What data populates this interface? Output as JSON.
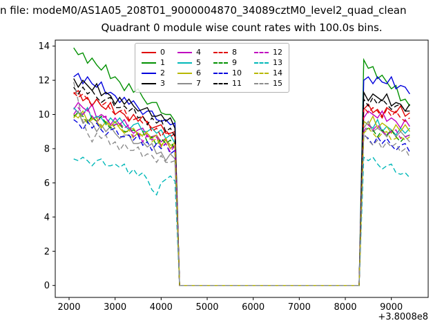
{
  "figure": {
    "title_line1": "n file: modeM0/AS1A05_208T01_9000004870_34089cztM0_level2_quad_clean",
    "title_line2": "Quadrant 0 module wise count rates with 100.0s bins."
  },
  "chart_data": {
    "type": "line",
    "title": "Quadrant 0 module wise count rates with 100.0s bins.",
    "xlabel": "",
    "ylabel": "",
    "x_offset_label": "+3.8008e8",
    "xlim": [
      1700,
      9800
    ],
    "ylim": [
      -0.7,
      14.35
    ],
    "xticks": [
      2000,
      3000,
      4000,
      5000,
      6000,
      7000,
      8000,
      9000
    ],
    "yticks": [
      0,
      2,
      4,
      6,
      8,
      10,
      12,
      14
    ],
    "grid": false,
    "legend_position": "upper center",
    "x_phase1": [
      2100,
      2200,
      2300,
      2400,
      2500,
      2600,
      2700,
      2800,
      2900,
      3000,
      3100,
      3200,
      3300,
      3400,
      3500,
      3600,
      3700,
      3800,
      3900,
      4000,
      4100,
      4200,
      4300
    ],
    "gap": {
      "x_drop": 4400,
      "x_rise": 8300,
      "value": 0
    },
    "x_phase2": [
      8400,
      8500,
      8600,
      8700,
      8800,
      8900,
      9000,
      9100,
      9200,
      9300,
      9400
    ],
    "series": [
      {
        "label": "0",
        "color": "#e00000",
        "dashed": false,
        "phase1": [
          11.2,
          11.4,
          10.8,
          11.0,
          10.5,
          10.9,
          10.5,
          10.3,
          10.7,
          10.0,
          10.2,
          10.0,
          9.6,
          10.0,
          9.6,
          9.9,
          9.5,
          9.2,
          9.3,
          9.4,
          8.9,
          8.9,
          9.0
        ],
        "phase2": [
          10.3,
          10.6,
          10.1,
          10.3,
          9.9,
          10.4,
          10.2,
          10.1,
          10.5,
          9.9,
          10.1
        ]
      },
      {
        "label": "1",
        "color": "#009000",
        "dashed": false,
        "phase1": [
          13.9,
          13.5,
          13.6,
          13.0,
          13.3,
          12.9,
          12.6,
          12.9,
          12.1,
          12.2,
          11.9,
          11.4,
          11.8,
          11.3,
          11.5,
          11.0,
          10.6,
          10.7,
          10.7,
          10.1,
          10.0,
          10.0,
          9.6
        ],
        "phase2": [
          13.2,
          12.7,
          12.8,
          12.1,
          12.3,
          11.9,
          11.5,
          11.7,
          10.8,
          10.9,
          10.5
        ]
      },
      {
        "label": "2",
        "color": "#0000dd",
        "dashed": false,
        "phase1": [
          12.2,
          12.4,
          11.8,
          12.2,
          11.8,
          11.6,
          11.9,
          11.2,
          11.3,
          11.1,
          10.7,
          11.0,
          10.6,
          10.8,
          10.4,
          10.0,
          10.2,
          10.2,
          9.7,
          9.6,
          9.7,
          9.4,
          9.5
        ],
        "phase2": [
          12.0,
          12.2,
          11.8,
          12.2,
          11.9,
          11.8,
          12.2,
          11.5,
          11.7,
          11.6,
          11.2
        ]
      },
      {
        "label": "3",
        "color": "#000000",
        "dashed": false,
        "phase1": [
          12.1,
          11.6,
          12.0,
          11.7,
          11.4,
          11.8,
          11.1,
          11.3,
          11.1,
          10.6,
          11.0,
          10.6,
          10.9,
          10.5,
          10.2,
          10.3,
          10.4,
          9.9,
          9.9,
          10.0,
          9.6,
          9.8,
          9.2
        ],
        "phase2": [
          11.3,
          10.8,
          11.2,
          11.0,
          10.8,
          11.2,
          10.5,
          10.7,
          10.6,
          10.2,
          10.6
        ]
      },
      {
        "label": "4",
        "color": "#c000c0",
        "dashed": false,
        "phase1": [
          10.3,
          10.7,
          10.4,
          10.2,
          10.6,
          9.8,
          10.0,
          9.8,
          9.4,
          9.8,
          9.4,
          9.7,
          9.2,
          8.9,
          9.1,
          9.2,
          8.7,
          8.7,
          8.8,
          8.4,
          8.6,
          8.0,
          8.2
        ],
        "phase2": [
          9.8,
          10.2,
          10.0,
          9.8,
          10.2,
          9.6,
          9.8,
          9.6,
          9.2,
          9.7,
          9.3
        ]
      },
      {
        "label": "5",
        "color": "#00b8b8",
        "dashed": false,
        "phase1": [
          10.4,
          10.1,
          10.0,
          10.4,
          9.7,
          9.9,
          9.8,
          9.4,
          9.8,
          9.5,
          9.8,
          9.4,
          9.1,
          9.4,
          9.5,
          9.0,
          9.0,
          9.2,
          8.9,
          9.1,
          8.6,
          8.8,
          8.3
        ],
        "phase2": [
          9.6,
          9.4,
          9.2,
          9.7,
          9.0,
          9.3,
          9.1,
          8.8,
          9.2,
          8.9,
          9.2
        ]
      },
      {
        "label": "6",
        "color": "#b8b800",
        "dashed": false,
        "phase1": [
          10.0,
          9.8,
          10.2,
          9.6,
          9.8,
          9.6,
          9.2,
          9.6,
          9.3,
          9.6,
          9.2,
          8.9,
          9.1,
          9.2,
          8.8,
          8.8,
          8.9,
          8.6,
          8.8,
          8.2,
          8.5,
          8.0,
          8.4
        ],
        "phase2": [
          9.6,
          9.4,
          9.9,
          9.2,
          9.5,
          9.3,
          8.9,
          9.4,
          9.0,
          9.4,
          9.0
        ]
      },
      {
        "label": "7",
        "color": "#8c8c8c",
        "dashed": false,
        "phase1": [
          9.8,
          10.2,
          9.5,
          9.7,
          9.5,
          9.0,
          9.4,
          9.0,
          9.3,
          8.9,
          8.6,
          8.8,
          8.8,
          8.3,
          8.3,
          8.4,
          8.1,
          8.3,
          7.7,
          7.8,
          7.3,
          7.7,
          7.4
        ],
        "phase2": [
          9.2,
          9.6,
          9.0,
          9.2,
          9.0,
          8.7,
          9.1,
          8.7,
          9.0,
          8.7,
          8.4
        ]
      },
      {
        "label": "8",
        "color": "#e00000",
        "dashed": true,
        "phase1": [
          11.3,
          11.0,
          11.2,
          10.9,
          10.5,
          10.9,
          10.5,
          10.7,
          10.3,
          10.0,
          10.2,
          10.3,
          9.7,
          9.7,
          9.8,
          9.5,
          9.6,
          9.0,
          9.2,
          8.7,
          9.1,
          8.7,
          8.9
        ],
        "phase2": [
          10.4,
          10.1,
          10.4,
          10.2,
          9.8,
          10.3,
          9.9,
          10.2,
          9.8,
          9.6,
          9.8
        ]
      },
      {
        "label": "9",
        "color": "#009000",
        "dashed": true,
        "phase1": [
          9.9,
          10.1,
          9.9,
          9.5,
          9.9,
          9.6,
          9.9,
          9.5,
          9.2,
          9.4,
          9.5,
          9.0,
          9.0,
          9.1,
          8.8,
          9.0,
          8.4,
          8.7,
          8.2,
          8.6,
          8.3,
          8.5,
          7.9
        ],
        "phase2": [
          9.0,
          9.2,
          9.1,
          8.7,
          9.1,
          8.8,
          9.1,
          8.7,
          8.4,
          8.7,
          8.8
        ]
      },
      {
        "label": "10",
        "color": "#0000dd",
        "dashed": true,
        "phase1": [
          9.7,
          9.5,
          9.1,
          9.6,
          9.2,
          9.5,
          9.1,
          8.8,
          9.1,
          9.2,
          8.7,
          8.7,
          8.8,
          8.5,
          8.8,
          8.2,
          8.4,
          7.9,
          8.3,
          8.0,
          8.3,
          7.7,
          7.9
        ],
        "phase2": [
          8.8,
          8.6,
          8.2,
          8.7,
          8.3,
          8.6,
          8.2,
          7.9,
          8.2,
          8.3,
          7.8
        ]
      },
      {
        "label": "11",
        "color": "#000000",
        "dashed": true,
        "phase1": [
          11.6,
          11.2,
          11.6,
          11.2,
          11.4,
          11.0,
          10.7,
          10.9,
          11.0,
          10.4,
          10.4,
          10.5,
          10.2,
          10.4,
          9.8,
          9.9,
          9.4,
          9.8,
          9.5,
          9.7,
          9.0,
          9.2,
          8.7
        ],
        "phase2": [
          10.9,
          10.5,
          11.0,
          10.6,
          10.9,
          10.6,
          10.3,
          10.5,
          10.6,
          10.2,
          10.2
        ]
      },
      {
        "label": "12",
        "color": "#c000c0",
        "dashed": true,
        "phase1": [
          10.0,
          10.4,
          10.0,
          10.3,
          9.9,
          9.6,
          9.8,
          9.9,
          9.4,
          9.4,
          9.5,
          9.2,
          9.4,
          8.7,
          8.9,
          8.4,
          8.8,
          8.5,
          8.7,
          8.1,
          8.3,
          7.8,
          8.2
        ],
        "phase2": [
          9.0,
          9.4,
          9.1,
          9.4,
          9.0,
          8.8,
          9.0,
          9.1,
          8.6,
          8.7,
          8.8
        ]
      },
      {
        "label": "13",
        "color": "#00b8b8",
        "dashed": true,
        "phase1": [
          7.4,
          7.3,
          7.5,
          7.3,
          7.0,
          7.3,
          7.4,
          7.0,
          7.0,
          7.1,
          6.9,
          7.1,
          6.5,
          6.8,
          6.4,
          6.6,
          6.2,
          5.6,
          5.3,
          6.0,
          6.2,
          6.4,
          6.1
        ],
        "phase2": [
          7.5,
          7.3,
          7.5,
          7.1,
          6.8,
          7.0,
          7.1,
          6.6,
          6.5,
          6.6,
          6.3
        ]
      },
      {
        "label": "14",
        "color": "#b8b800",
        "dashed": true,
        "phase1": [
          9.8,
          10.1,
          9.8,
          9.5,
          9.7,
          9.8,
          9.3,
          9.4,
          9.5,
          9.2,
          9.4,
          8.9,
          9.1,
          8.6,
          9.0,
          8.7,
          9.0,
          8.4,
          8.6,
          8.1,
          8.6,
          8.2,
          8.2
        ],
        "phase2": [
          8.9,
          9.2,
          8.9,
          8.6,
          8.9,
          9.0,
          8.5,
          8.6,
          8.7,
          8.5,
          8.7
        ]
      },
      {
        "label": "15",
        "color": "#8c8c8c",
        "dashed": true,
        "phase1": [
          11.9,
          10.8,
          9.6,
          8.9,
          8.4,
          8.9,
          8.6,
          8.8,
          8.2,
          8.4,
          7.9,
          8.3,
          7.9,
          7.9,
          8.1,
          7.5,
          7.7,
          7.6,
          7.2,
          7.6,
          7.2,
          7.2,
          7.3
        ],
        "phase2": [
          8.9,
          8.5,
          8.2,
          8.5,
          8.0,
          8.4,
          8.1,
          8.3,
          7.8,
          8.0,
          7.5
        ]
      }
    ]
  }
}
